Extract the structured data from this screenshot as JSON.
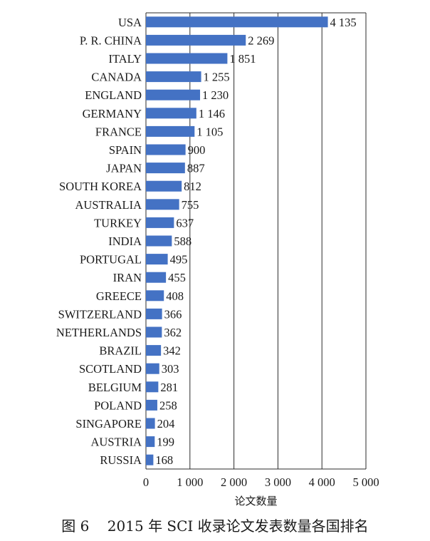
{
  "chart_data": {
    "type": "bar",
    "orientation": "horizontal",
    "categories": [
      "USA",
      "P. R. CHINA",
      "ITALY",
      "CANADA",
      "ENGLAND",
      "GERMANY",
      "FRANCE",
      "SPAIN",
      "JAPAN",
      "SOUTH KOREA",
      "AUSTRALIA",
      "TURKEY",
      "INDIA",
      "PORTUGAL",
      "IRAN",
      "GREECE",
      "SWITZERLAND",
      "NETHERLANDS",
      "BRAZIL",
      "SCOTLAND",
      "BELGIUM",
      "POLAND",
      "SINGAPORE",
      "AUSTRIA",
      "RUSSIA"
    ],
    "values": [
      4135,
      2269,
      1851,
      1255,
      1230,
      1146,
      1105,
      900,
      887,
      812,
      755,
      637,
      588,
      495,
      455,
      408,
      366,
      362,
      342,
      303,
      281,
      258,
      204,
      199,
      168
    ],
    "value_labels": [
      "4 135",
      "2 269",
      "1 851",
      "1 255",
      "1 230",
      "1 146",
      "1 105",
      "900",
      "887",
      "812",
      "755",
      "637",
      "588",
      "495",
      "455",
      "408",
      "366",
      "362",
      "342",
      "303",
      "281",
      "258",
      "204",
      "199",
      "168"
    ],
    "xlim": [
      0,
      5000
    ],
    "xticks": [
      0,
      1000,
      2000,
      3000,
      4000,
      5000
    ],
    "xtick_labels": [
      "0",
      "1 000",
      "2 000",
      "3 000",
      "4 000",
      "5 000"
    ],
    "xlabel": "论文数量",
    "ylabel": "",
    "title": "",
    "bar_color": "#4472c4",
    "grid": "vertical",
    "legend": "none"
  },
  "caption": "图 6    2015 年 SCI 收录论文发表数量各国排名"
}
